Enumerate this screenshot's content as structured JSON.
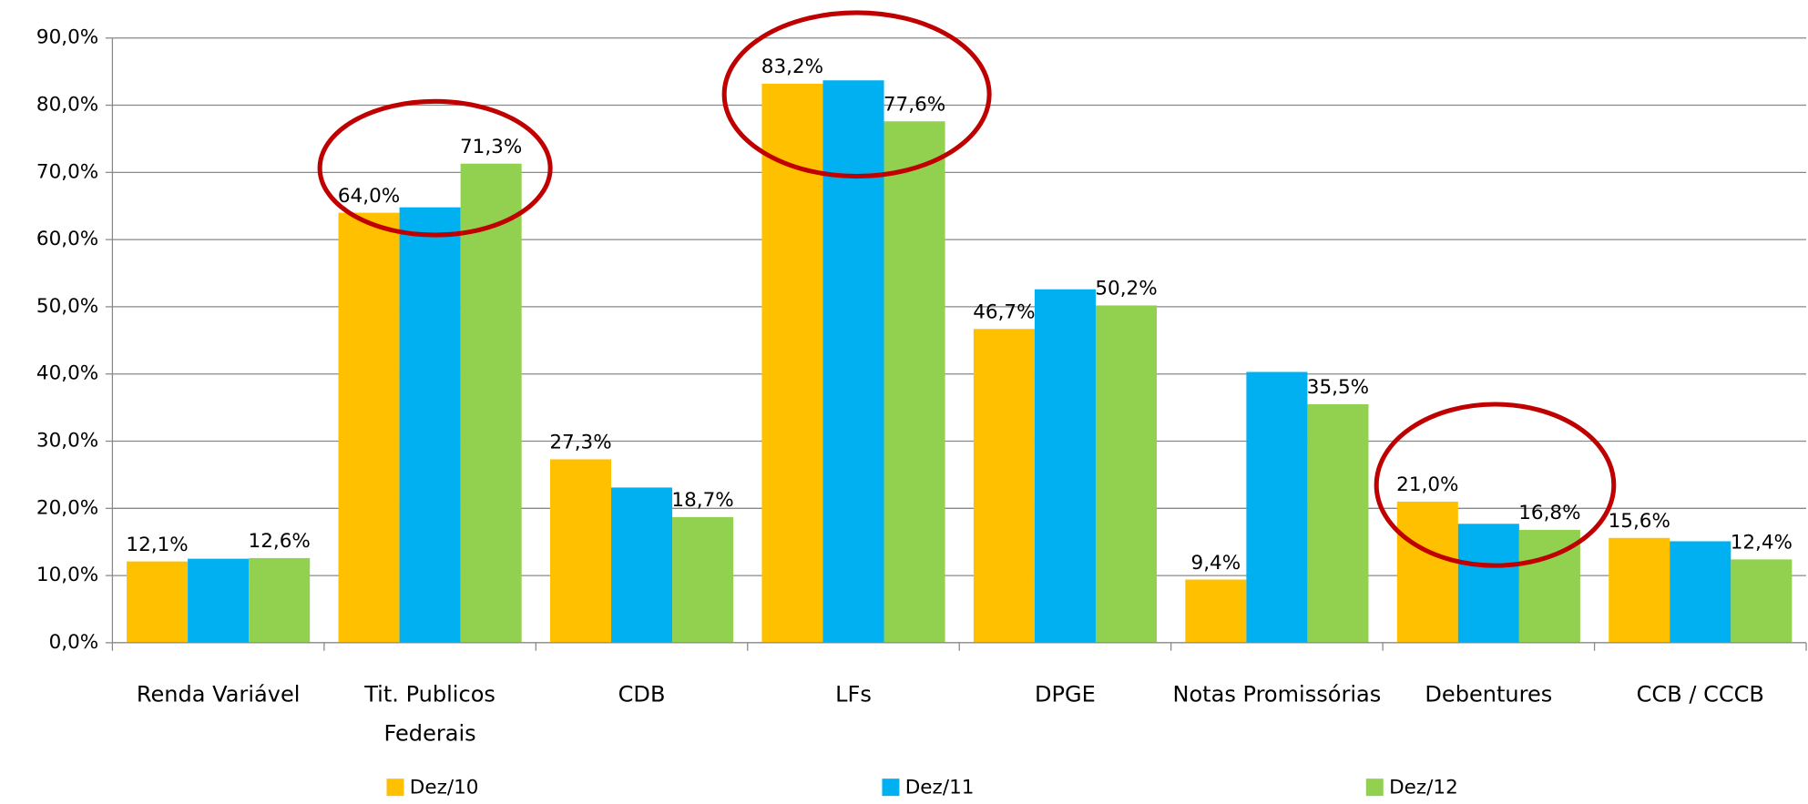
{
  "chart_data": {
    "type": "bar",
    "categories": [
      "Renda Variável",
      "Tit. Publicos Federais",
      "CDB",
      "LFs",
      "DPGE",
      "Notas Promissórias",
      "Debentures",
      "CCB / CCCB"
    ],
    "series": [
      {
        "name": "Dez/10",
        "color": "#FFC000",
        "values": [
          12.1,
          64.0,
          27.3,
          83.2,
          46.7,
          9.4,
          21.0,
          15.6
        ],
        "value_labels": [
          "12,1%",
          "64,0%",
          "27,3%",
          "83,2%",
          "46,7%",
          "9,4%",
          "21,0%",
          "15,6%"
        ]
      },
      {
        "name": "Dez/11",
        "color": "#00B0F0",
        "values": [
          12.5,
          64.8,
          23.1,
          83.7,
          52.6,
          40.3,
          17.7,
          15.1
        ]
      },
      {
        "name": "Dez/12",
        "color": "#92D050",
        "values": [
          12.6,
          71.3,
          18.7,
          77.6,
          50.2,
          35.5,
          16.8,
          12.4
        ],
        "value_labels": [
          "12,6%",
          "71,3%",
          "18,7%",
          "77,6%",
          "50,2%",
          "35,5%",
          "16,8%",
          "12,4%"
        ]
      }
    ],
    "ylim": [
      0,
      90
    ],
    "yticks": [
      {
        "value": 0,
        "label": "0,0%"
      },
      {
        "value": 10,
        "label": "10,0%"
      },
      {
        "value": 20,
        "label": "20,0%"
      },
      {
        "value": 30,
        "label": "30,0%"
      },
      {
        "value": 40,
        "label": "40,0%"
      },
      {
        "value": 50,
        "label": "50,0%"
      },
      {
        "value": 60,
        "label": "60,0%"
      },
      {
        "value": 70,
        "label": "70,0%"
      },
      {
        "value": 80,
        "label": "80,0%"
      },
      {
        "value": 90,
        "label": "90,0%"
      }
    ],
    "grid": true,
    "legend": "bottom"
  }
}
